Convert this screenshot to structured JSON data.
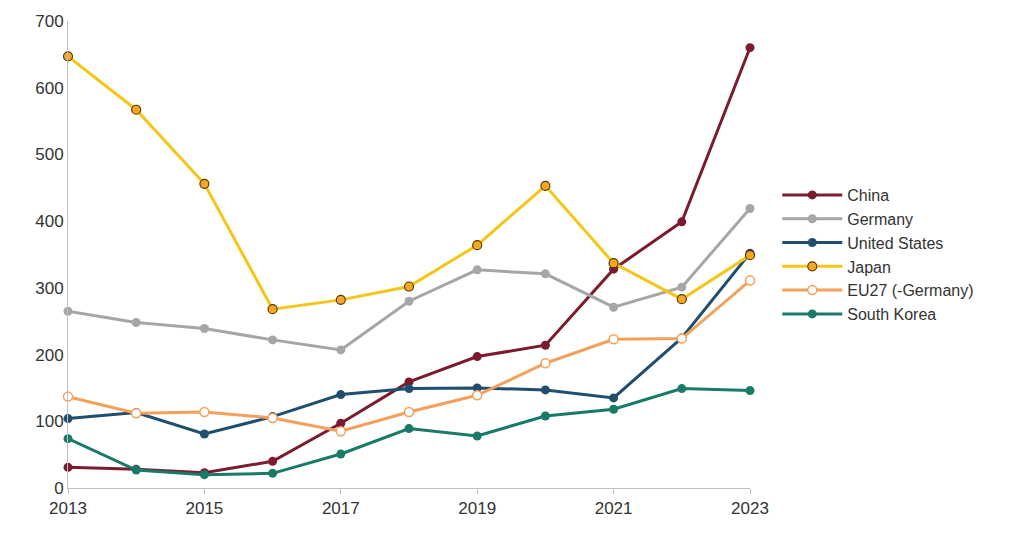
{
  "chart_data": {
    "type": "line",
    "x": [
      2013,
      2014,
      2015,
      2016,
      2017,
      2018,
      2019,
      2020,
      2021,
      2022,
      2023
    ],
    "xlim": [
      2013,
      2023
    ],
    "xticks": [
      2013,
      2015,
      2017,
      2019,
      2021,
      2023
    ],
    "ylim": [
      0,
      700
    ],
    "yticks": [
      0,
      100,
      200,
      300,
      400,
      500,
      600,
      700
    ],
    "grid": false,
    "legend": "right",
    "series": [
      {
        "name": "China",
        "color": "#7b1c2e",
        "marker": "circle",
        "values": [
          31,
          28,
          23,
          40,
          97,
          159,
          197,
          214,
          328,
          399,
          660
        ]
      },
      {
        "name": "Germany",
        "color": "#a6a6a6",
        "marker": "circle",
        "values": [
          265,
          248,
          239,
          222,
          207,
          280,
          327,
          321,
          271,
          301,
          419
        ]
      },
      {
        "name": "United States",
        "color": "#1f4e6e",
        "marker": "circle",
        "values": [
          104,
          113,
          81,
          107,
          140,
          149,
          150,
          147,
          135,
          225,
          352
        ]
      },
      {
        "name": "Japan",
        "color": "#f5c518",
        "marker": "circle-outlined",
        "values": [
          647,
          567,
          456,
          268,
          282,
          302,
          364,
          453,
          337,
          283,
          349
        ]
      },
      {
        "name": "EU27 (-Germany)",
        "color": "#f4a05a",
        "marker": "circle-open",
        "values": [
          137,
          112,
          114,
          105,
          85,
          114,
          139,
          187,
          223,
          224,
          311
        ]
      },
      {
        "name": "South Korea",
        "color": "#1a7a6a",
        "marker": "circle",
        "values": [
          74,
          27,
          20,
          22,
          51,
          89,
          78,
          108,
          118,
          149,
          146
        ]
      }
    ]
  }
}
